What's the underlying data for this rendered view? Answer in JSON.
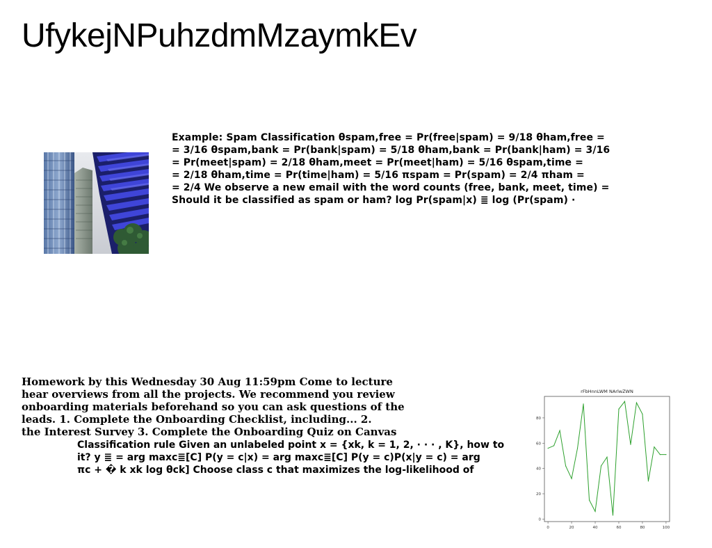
{
  "page": {
    "title": "UfykejNPuhzdmMzaymkEv"
  },
  "blocks": {
    "spam_example": "Example: Spam Classification θspam,free = Pr(free|spam) = 9/18 θham,free =\n= 3/16 θspam,bank = Pr(bank|spam) = 5/18 θham,bank = Pr(bank|ham) = 3/16\n= Pr(meet|spam) = 2/18 θham,meet = Pr(meet|ham) = 5/16 θspam,time =\n= 2/18 θham,time = Pr(time|ham) = 5/16 πspam = Pr(spam) = 2/4 πham =\n= 2/4 We observe a new email with the word counts (free, bank, meet, time) =\nShould it be classified as spam or ham? log Pr(spam|x) ≣ log (Pr(spam) ·",
    "homework": "Homework by this Wednesday 30 Aug 11:59pm Come to lecture\nhear overviews from all the projects. We recommend you review\nonboarding materials beforehand so you can ask questions of the\nleads. 1. Complete the Onboarding Checklist, including... 2.\nthe Interest Survey 3. Complete the Onboarding Quiz on Canvas",
    "classification_rule": "Classification rule Given an unlabeled point x = {xk, k = 1, 2, · · · , K}, how to\nit? y ≣ = arg maxc≣[C] P(y = c|x) = arg maxc≣[C] P(y = c)P(x|y = c) = arg\nπc + � k xk log θck] Choose class c that maximizes the log-likelihood of"
  },
  "image": {
    "icon": "building-photo-icon"
  },
  "chart_data": {
    "type": "line",
    "title": "rFbHnnLWM NArlwZWN",
    "xlabel": "",
    "ylabel": "",
    "xlim": [
      -3,
      103
    ],
    "ylim": [
      -2,
      97
    ],
    "x_ticks": [
      "0",
      "20",
      "40",
      "60",
      "80",
      "100"
    ],
    "y_ticks": [
      "0",
      "20",
      "40",
      "60",
      "80"
    ],
    "grid": false,
    "color": "#2ca02c",
    "x": [
      0,
      5,
      10,
      15,
      20,
      25,
      30,
      35,
      40,
      45,
      50,
      55,
      60,
      65,
      70,
      75,
      80,
      85,
      90,
      95,
      100
    ],
    "y": [
      56,
      58,
      70,
      42,
      32,
      56,
      91,
      15,
      6,
      42,
      49,
      3,
      87,
      93,
      59,
      92,
      83,
      30,
      57,
      51,
      51
    ]
  }
}
